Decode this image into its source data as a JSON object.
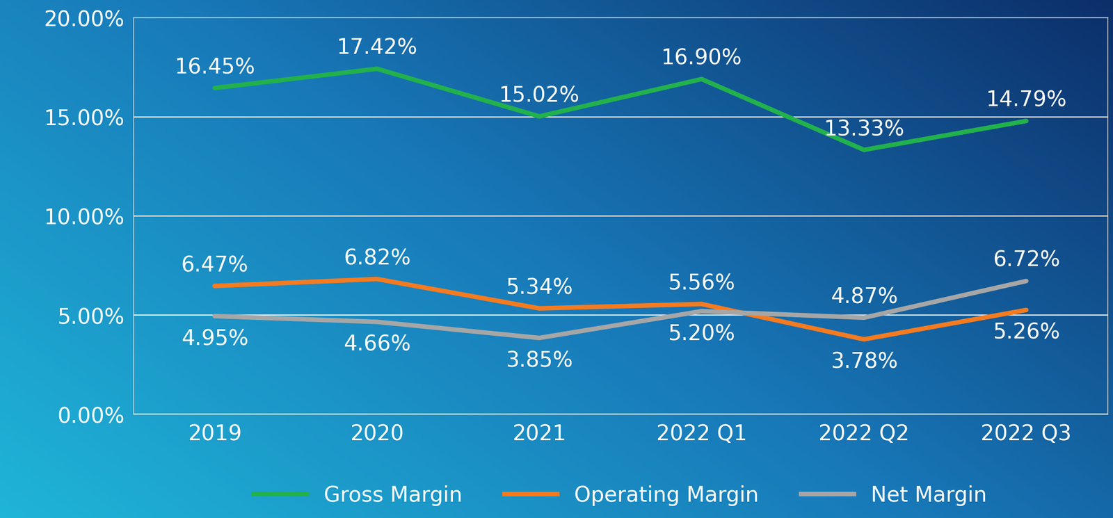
{
  "chart_data": {
    "type": "line",
    "categories": [
      "2019",
      "2020",
      "2021",
      "2022 Q1",
      "2022 Q2",
      "2022 Q3"
    ],
    "series": [
      {
        "name": "Gross Margin",
        "color": "#22b14c",
        "values": [
          16.45,
          17.42,
          15.02,
          16.9,
          13.33,
          14.79
        ],
        "value_labels": [
          "16.45%",
          "17.42%",
          "15.02%",
          "16.90%",
          "13.33%",
          "14.79%"
        ]
      },
      {
        "name": "Operating Margin",
        "color": "#f47b20",
        "values": [
          6.47,
          6.82,
          5.34,
          5.56,
          3.78,
          5.26
        ],
        "value_labels": [
          "6.47%",
          "6.82%",
          "5.34%",
          "5.56%",
          "3.78%",
          "5.26%"
        ]
      },
      {
        "name": "Net Margin",
        "color": "#a6a6a6",
        "values": [
          4.95,
          4.66,
          3.85,
          5.2,
          4.87,
          6.72
        ],
        "value_labels": [
          "4.95%",
          "4.66%",
          "3.85%",
          "5.20%",
          "4.87%",
          "6.72%"
        ]
      }
    ],
    "ylim": [
      0,
      20
    ],
    "yticks": [
      {
        "value": 0,
        "label": "0.00%"
      },
      {
        "value": 5,
        "label": "5.00%"
      },
      {
        "value": 10,
        "label": "10.00%"
      },
      {
        "value": 15,
        "label": "15.00%"
      },
      {
        "value": 20,
        "label": "20.00%"
      }
    ],
    "grid": true,
    "data_labels": true,
    "legend": "bottom"
  }
}
